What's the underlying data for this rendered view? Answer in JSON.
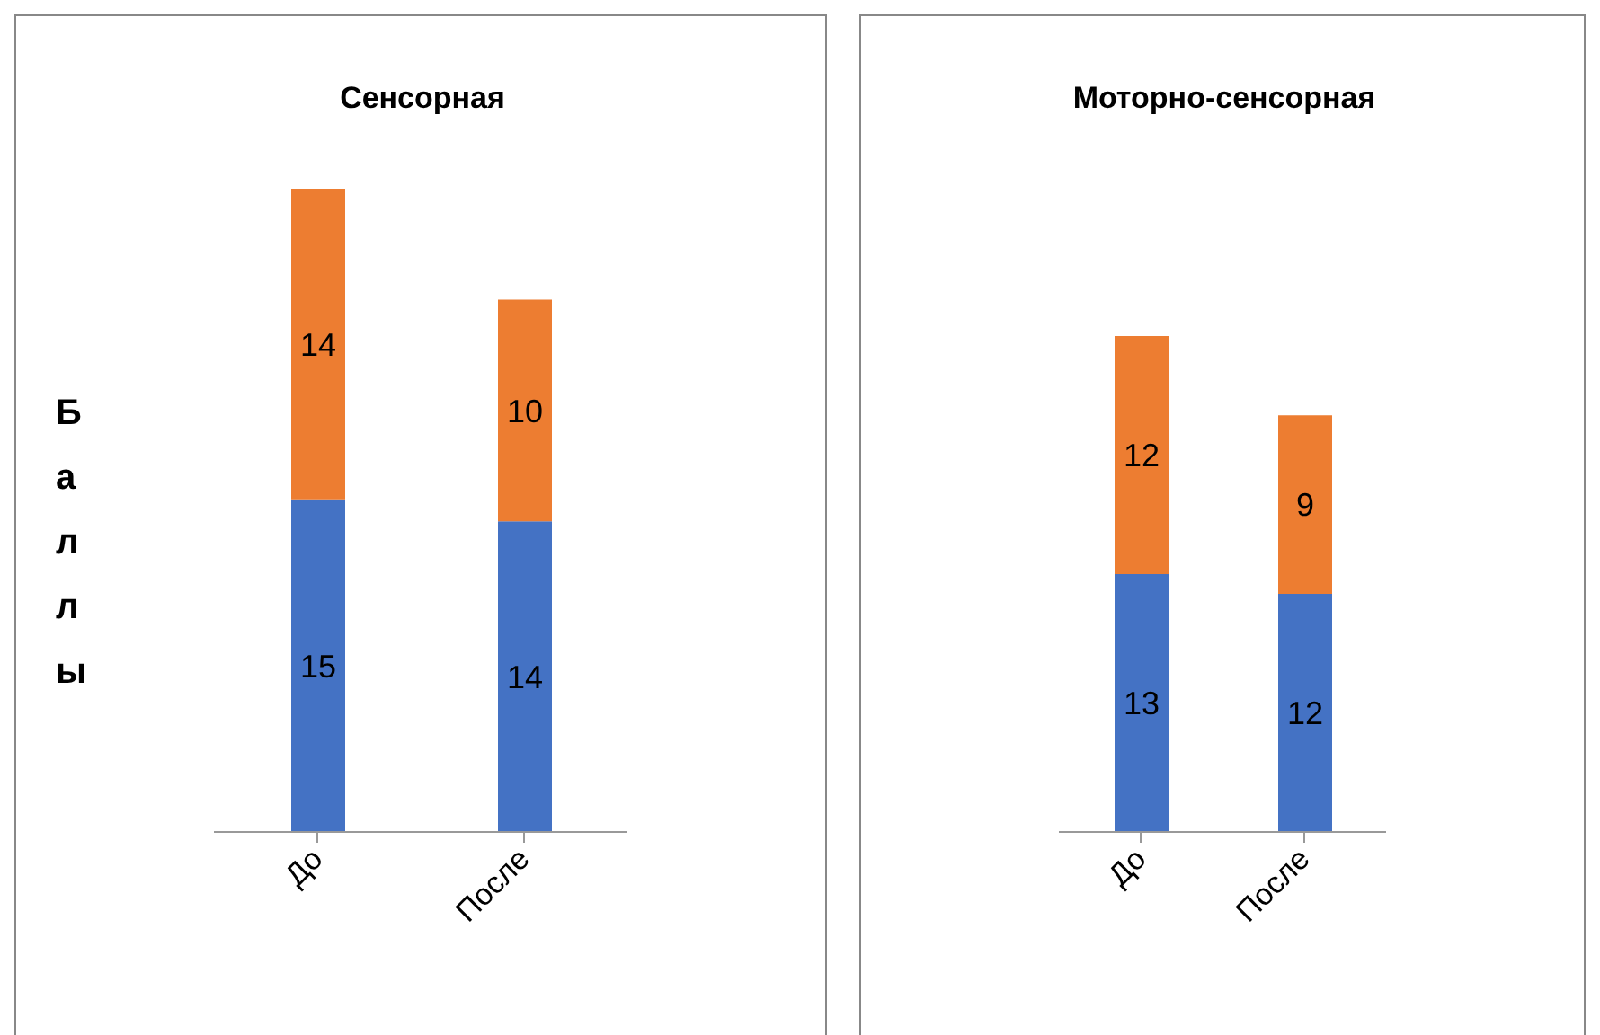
{
  "chart_data": [
    {
      "type": "bar",
      "title": "Сенсорная",
      "ylabel": "Баллы",
      "stacked": true,
      "data_labels": true,
      "tick_labels": "x",
      "grid": false,
      "legend": false,
      "categories": [
        "До",
        "После"
      ],
      "series": [
        {
          "color": "#4472c4",
          "values": [
            15,
            14
          ]
        },
        {
          "color": "#ed7d31",
          "values": [
            14,
            10
          ]
        }
      ]
    },
    {
      "type": "bar",
      "title": "Моторно-сенсорная",
      "stacked": true,
      "data_labels": true,
      "tick_labels": "x",
      "grid": false,
      "legend": false,
      "categories": [
        "До",
        "После"
      ],
      "series": [
        {
          "color": "#4472c4",
          "values": [
            13,
            12
          ]
        },
        {
          "color": "#ed7d31",
          "values": [
            12,
            9
          ]
        }
      ]
    }
  ]
}
